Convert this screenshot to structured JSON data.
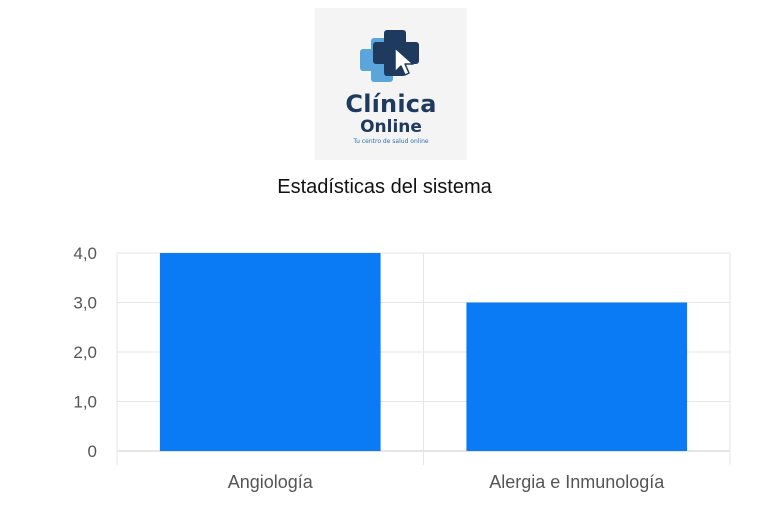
{
  "logo": {
    "name": "Clínica",
    "sub": "Online",
    "tagline": "Tu centro de salud online",
    "colors": {
      "navy": "#1e3a5f",
      "light_blue": "#5aa6dc",
      "background": "#f4f4f4"
    }
  },
  "title": "Estadísticas del sistema",
  "chart_data": {
    "type": "bar",
    "categories": [
      "Angiología",
      "Alergia e Inmunología"
    ],
    "values": [
      4,
      3
    ],
    "yticks": [
      "0",
      "1,0",
      "2,0",
      "3,0",
      "4,0"
    ],
    "ylim": [
      0,
      4
    ],
    "grid": true,
    "bar_color": "#0a7af5"
  }
}
